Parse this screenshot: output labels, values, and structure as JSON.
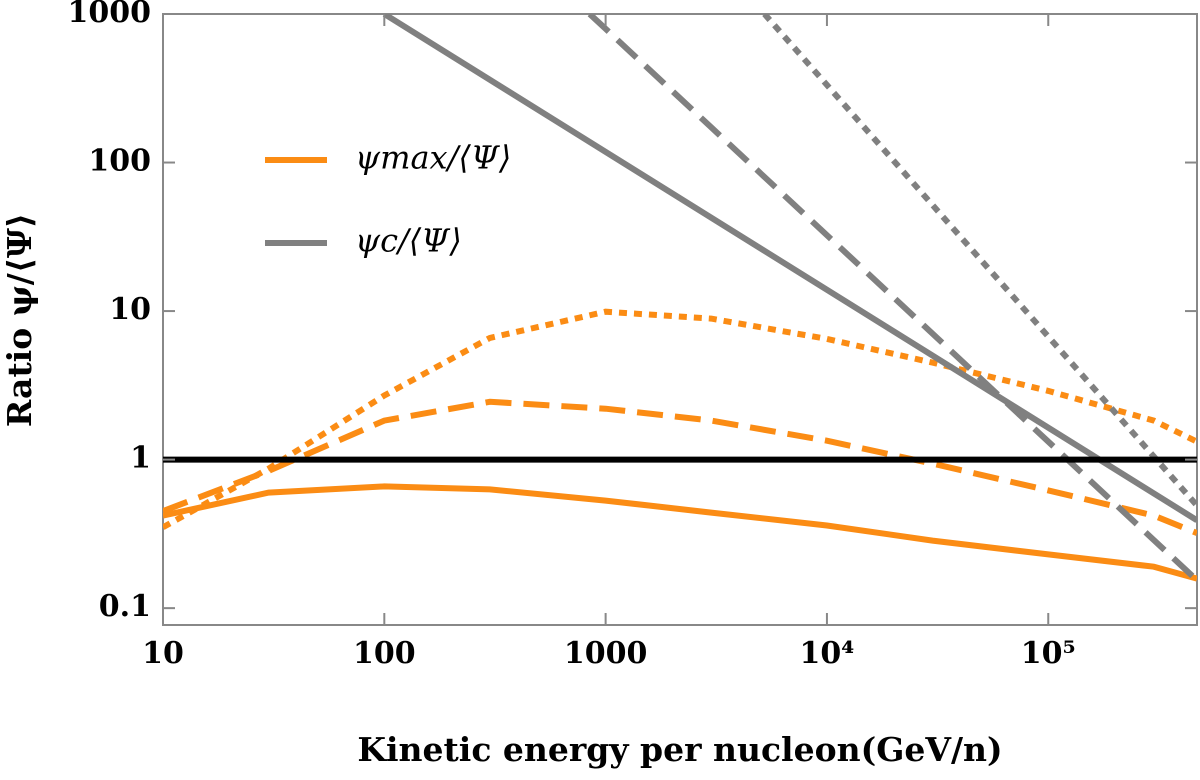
{
  "chart_data": {
    "type": "line",
    "xlabel": "Kinetic energy per nucleon(GeV/n)",
    "ylabel": "Ratio ψ/⟨Ψ⟩",
    "xscale": "log",
    "yscale": "log",
    "xlim": [
      10,
      470000
    ],
    "ylim": [
      0.077,
      1000
    ],
    "xticks": [
      10,
      100,
      1000,
      {
        "value": 10000,
        "label": "10⁴"
      },
      {
        "value": 100000,
        "label": "10⁵"
      }
    ],
    "yticks": [
      0.1,
      1,
      10,
      100,
      1000
    ],
    "legend": "upper left",
    "series": [
      {
        "name": "ψmax/⟨Ψ⟩",
        "color": "#fb8c14",
        "dash": "solid",
        "x": [
          10,
          30,
          100,
          300,
          1000,
          3000,
          10000,
          30000,
          100000,
          300000,
          470000
        ],
        "values": [
          0.42,
          0.6,
          0.66,
          0.63,
          0.53,
          0.44,
          0.36,
          0.285,
          0.23,
          0.19,
          0.158
        ]
      },
      {
        "color": "#fb8c14",
        "dash": "dashed",
        "x": [
          10,
          30,
          100,
          300,
          1000,
          3000,
          10000,
          30000,
          100000,
          300000,
          470000
        ],
        "values": [
          0.45,
          0.84,
          1.83,
          2.45,
          2.2,
          1.83,
          1.34,
          0.94,
          0.62,
          0.42,
          0.32
        ]
      },
      {
        "color": "#fb8c14",
        "dash": "dotted",
        "x": [
          10,
          30,
          100,
          300,
          1000,
          3000,
          10000,
          30000,
          100000,
          300000,
          470000
        ],
        "values": [
          0.35,
          0.87,
          2.7,
          6.6,
          9.9,
          8.9,
          6.5,
          4.5,
          2.9,
          1.83,
          1.32
        ]
      },
      {
        "name": "ψc/⟨Ψ⟩",
        "color": "#808080",
        "dash": "solid",
        "x": [
          100,
          470000
        ],
        "values": [
          1000,
          0.39
        ]
      },
      {
        "color": "#808080",
        "dash": "dashed",
        "x": [
          847,
          470000
        ],
        "values": [
          1000,
          0.154
        ]
      },
      {
        "color": "#808080",
        "dash": "dotted",
        "x": [
          5220,
          470000
        ],
        "values": [
          1000,
          0.49
        ]
      },
      {
        "color": "#000000",
        "dash": "solid",
        "x": [
          10,
          470000
        ],
        "values": [
          1,
          1
        ]
      }
    ]
  }
}
